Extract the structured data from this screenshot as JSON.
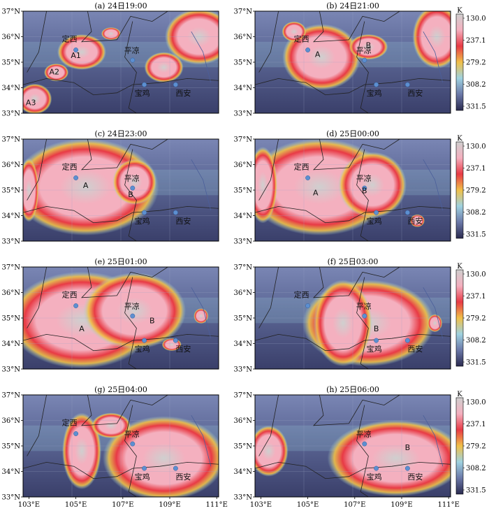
{
  "colorbar": {
    "unit": "K",
    "ticks": [
      "130.0",
      "237.1",
      "279.2",
      "308.2",
      "331.5"
    ],
    "colors": [
      "#cfcfcf",
      "#f4b0bf",
      "#e83a45",
      "#f0c048",
      "#9fd2e0",
      "#6b78a8",
      "#2a2a4f"
    ]
  },
  "axes": {
    "lat_labels": [
      "37°N",
      "36°N",
      "35°N",
      "34°N",
      "33°N"
    ],
    "lon_labels": [
      "103°E",
      "105°E",
      "107°E",
      "109°E",
      "111°E"
    ]
  },
  "cities": {
    "dingxi": "定西",
    "pingliang": "平凉",
    "baoji": "宝鸡",
    "xian": "西安"
  },
  "panels": [
    {
      "id": "a",
      "title": "(a) 24日19:00",
      "cells": [
        "A1",
        "A2",
        "A3"
      ],
      "city_show": {
        "dingxi": true,
        "pingliang": true,
        "baoji": true,
        "xian": true
      }
    },
    {
      "id": "b",
      "title": "(b) 24日21:00",
      "cells": [
        "A",
        "B"
      ],
      "city_show": {
        "dingxi": true,
        "pingliang": true,
        "baoji": true,
        "xian": true
      }
    },
    {
      "id": "c",
      "title": "(c) 24日23:00",
      "cells": [
        "A",
        "B"
      ],
      "city_show": {
        "dingxi": true,
        "pingliang": true,
        "baoji": true,
        "xian": true
      }
    },
    {
      "id": "d",
      "title": "(d) 25日00:00",
      "cells": [
        "A",
        "B"
      ],
      "city_show": {
        "dingxi": true,
        "pingliang": true,
        "baoji": true,
        "xian": true
      }
    },
    {
      "id": "e",
      "title": "(e) 25日01:00",
      "cells": [
        "A",
        "B"
      ],
      "city_show": {
        "dingxi": true,
        "pingliang": true,
        "baoji": true,
        "xian": true
      }
    },
    {
      "id": "f",
      "title": "(f) 25日03:00",
      "cells": [
        "B"
      ],
      "city_show": {
        "dingxi": true,
        "pingliang": true,
        "baoji": true,
        "xian": true
      }
    },
    {
      "id": "g",
      "title": "(g) 25日04:00",
      "cells": [],
      "city_show": {
        "dingxi": true,
        "pingliang": true,
        "baoji": true,
        "xian": true
      }
    },
    {
      "id": "h",
      "title": "(h) 25日06:00",
      "cells": [
        "B"
      ],
      "city_show": {
        "dingxi": false,
        "pingliang": true,
        "baoji": true,
        "xian": true
      }
    }
  ]
}
